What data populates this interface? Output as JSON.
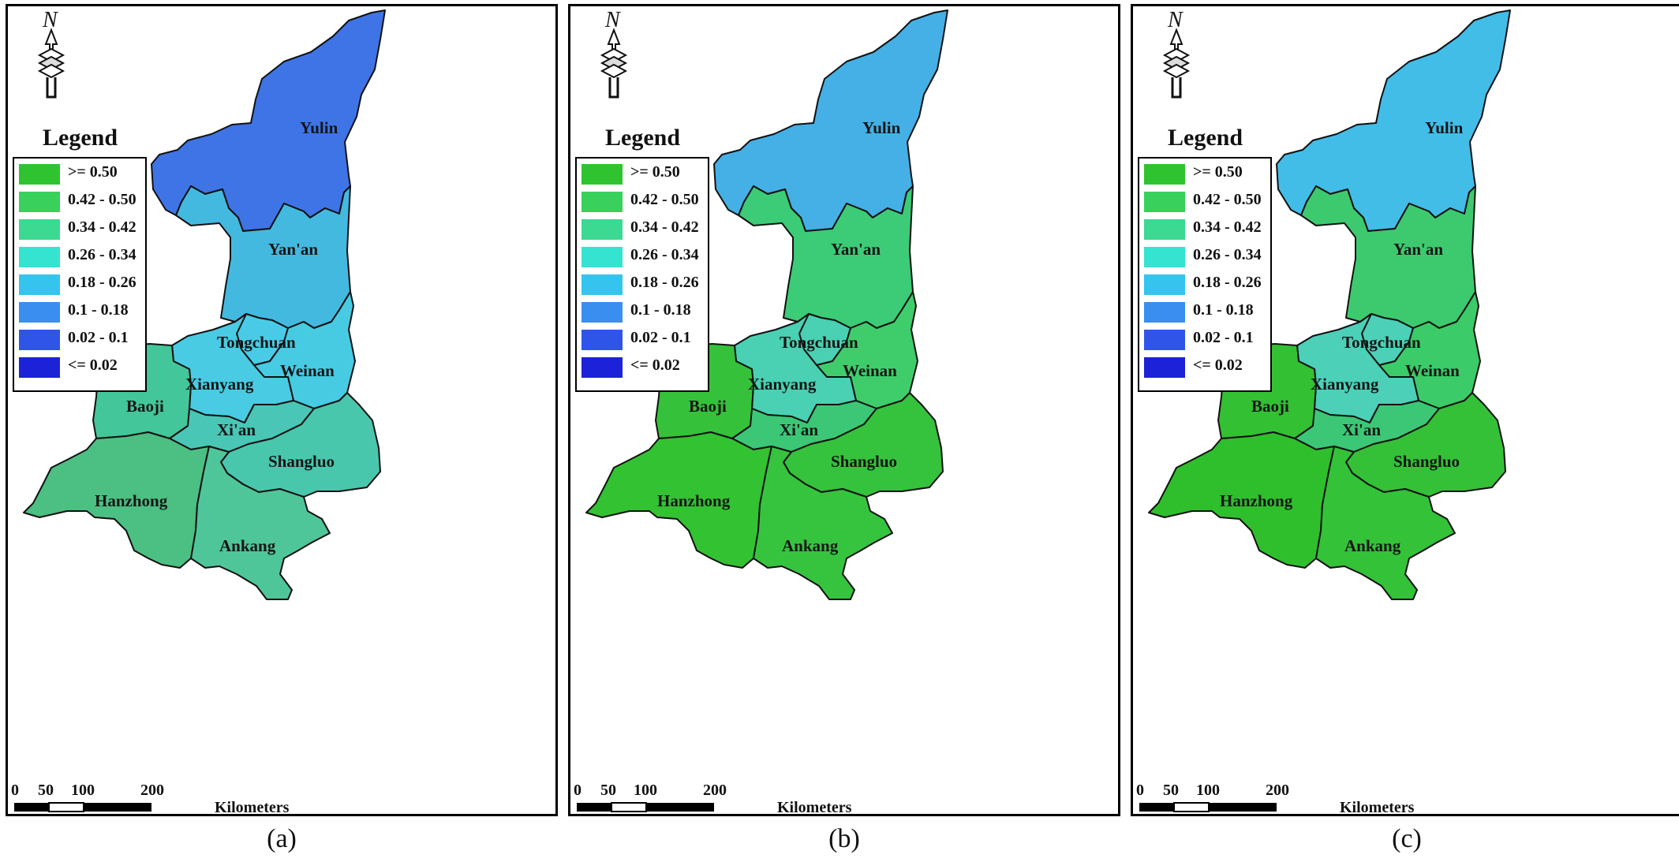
{
  "legend": {
    "title": "Legend",
    "classes": [
      {
        "label": ">= 0.50",
        "color": "#2fc42f"
      },
      {
        "label": "0.42 - 0.50",
        "color": "#39d05c"
      },
      {
        "label": "0.34 - 0.42",
        "color": "#3bd992"
      },
      {
        "label": "0.26 - 0.34",
        "color": "#35e3d1"
      },
      {
        "label": "0.18 - 0.26",
        "color": "#34c4ee"
      },
      {
        "label": "0.1 - 0.18",
        "color": "#3a8ef0"
      },
      {
        "label": "0.02 - 0.1",
        "color": "#2f55e8"
      },
      {
        "label": "<= 0.02",
        "color": "#1c22d8"
      }
    ]
  },
  "north_arrow": {
    "label": "N"
  },
  "scale_bar": {
    "ticks": [
      "0",
      "50",
      "100",
      "200"
    ],
    "unit": "Kilometers"
  },
  "cities": [
    "Yulin",
    "Yan'an",
    "Tongchuan",
    "Weinan",
    "Xianyang",
    "Baoji",
    "Xi'an",
    "Shangluo",
    "Hanzhong",
    "Ankang"
  ],
  "panels": [
    {
      "caption": "(a)",
      "region_colors": {
        "Yulin": "#3f74e6",
        "Yan'an": "#44b9e0",
        "Tongchuan": "#49cbe8",
        "Weinan": "#46cbe3",
        "Xianyang": "#49cbe3",
        "Baoji": "#43c69a",
        "Xi'an": "#49c6b5",
        "Shangluo": "#48c7ad",
        "Hanzhong": "#4cbf82",
        "Ankang": "#4fc59a"
      }
    },
    {
      "caption": "(b)",
      "region_colors": {
        "Yulin": "#44b0e6",
        "Yan'an": "#3ccb76",
        "Tongchuan": "#4ad0b2",
        "Weinan": "#3fcd6c",
        "Xianyang": "#4ad0b2",
        "Baoji": "#35c23a",
        "Xi'an": "#3cc776",
        "Shangluo": "#35c23c",
        "Hanzhong": "#33c232",
        "Ankang": "#36c43f"
      }
    },
    {
      "caption": "(c)",
      "region_colors": {
        "Yulin": "#42bde7",
        "Yan'an": "#3dca6f",
        "Tongchuan": "#4cd0b8",
        "Weinan": "#3bcb68",
        "Xianyang": "#4cd0b8",
        "Baoji": "#33c033",
        "Xi'an": "#3cc776",
        "Shangluo": "#34c138",
        "Hanzhong": "#2fbf2c",
        "Ankang": "#33c238"
      }
    }
  ]
}
